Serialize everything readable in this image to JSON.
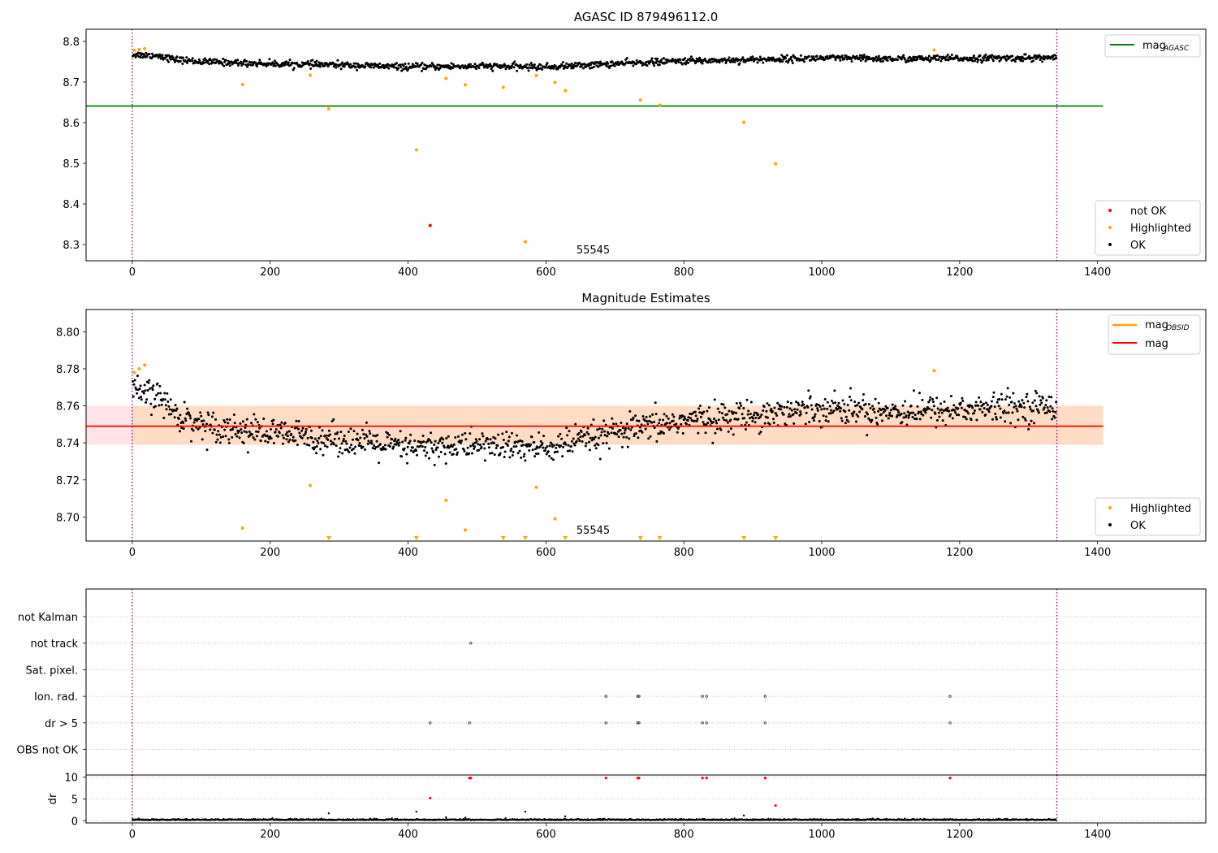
{
  "figure": {
    "panels": [
      {
        "id": "agasc",
        "title": "AGASC ID 879496112.0"
      },
      {
        "id": "estimates",
        "title": "Magnitude Estimates"
      },
      {
        "id": "flags",
        "title": ""
      }
    ]
  },
  "colors": {
    "ok": "#000000",
    "highlighted": "#ffa500",
    "not_ok": "#ff0000",
    "agasc_line": "#008000",
    "mag_line": "#ff0000",
    "mag_obsid": "#ffa500",
    "band_outer": "#ffc0cb",
    "band_inner": "#ffdab9",
    "obs_boundary": "#800080",
    "grid": "#b0b0b0"
  },
  "chart_data": [
    {
      "type": "scatter",
      "title": "AGASC ID 879496112.0",
      "xlim": [
        -67,
        1557
      ],
      "ylim": [
        8.26,
        8.83
      ],
      "x_ticks": [
        0,
        200,
        400,
        600,
        800,
        1000,
        1200,
        1400
      ],
      "y_ticks": [
        8.3,
        8.4,
        8.5,
        8.6,
        8.7,
        8.8
      ],
      "y_tick_labels": [
        "8.3",
        "8.4",
        "8.5",
        "8.6",
        "8.7",
        "8.8"
      ],
      "obs_boundaries": [
        0,
        1341
      ],
      "obsid_label": {
        "text": "55545",
        "x": 670,
        "y": 8.3
      },
      "ok_trend": {
        "x": [
          0,
          20,
          40,
          60,
          100,
          200,
          300,
          400,
          500,
          600,
          700,
          800,
          900,
          1000,
          1100,
          1200,
          1340
        ],
        "y": [
          8.768,
          8.766,
          8.765,
          8.756,
          8.75,
          8.745,
          8.742,
          8.737,
          8.739,
          8.737,
          8.745,
          8.752,
          8.755,
          8.759,
          8.757,
          8.758,
          8.76
        ],
        "scatter": 0.005,
        "n_points": 1340
      },
      "series": [
        {
          "name": "not OK",
          "points": [
            [
              432,
              8.347
            ]
          ]
        },
        {
          "name": "Highlighted",
          "points": [
            [
              3,
              8.778
            ],
            [
              10,
              8.78
            ],
            [
              18,
              8.782
            ],
            [
              160,
              8.694
            ],
            [
              258,
              8.717
            ],
            [
              285,
              8.634
            ],
            [
              412,
              8.533
            ],
            [
              455,
              8.709
            ],
            [
              483,
              8.693
            ],
            [
              538,
              8.687
            ],
            [
              570,
              8.307
            ],
            [
              586,
              8.716
            ],
            [
              613,
              8.699
            ],
            [
              628,
              8.679
            ],
            [
              737,
              8.656
            ],
            [
              765,
              8.643
            ],
            [
              887,
              8.601
            ],
            [
              933,
              8.499
            ],
            [
              1163,
              8.779
            ]
          ]
        }
      ],
      "reference_line": {
        "name": "mag_AGASC",
        "label_main": "mag",
        "label_sub": "AGASC",
        "y": 8.641,
        "x_range": [
          -67,
          1408
        ]
      },
      "legend_lines": {
        "position": "upper right",
        "entries": [
          "mag_AGASC"
        ]
      },
      "legend_points": {
        "position": "lower right",
        "entries": [
          "not OK",
          "Highlighted",
          "OK"
        ]
      }
    },
    {
      "type": "scatter",
      "title": "Magnitude Estimates",
      "xlim": [
        -67,
        1557
      ],
      "ylim": [
        8.687,
        8.812
      ],
      "x_ticks": [
        0,
        200,
        400,
        600,
        800,
        1000,
        1200,
        1400
      ],
      "y_ticks": [
        8.7,
        8.72,
        8.74,
        8.76,
        8.78,
        8.8
      ],
      "y_tick_labels": [
        "8.70",
        "8.72",
        "8.74",
        "8.76",
        "8.78",
        "8.80"
      ],
      "obs_boundaries": [
        0,
        1341
      ],
      "obsid_label": {
        "text": "55545",
        "x": 670,
        "y": 8.691
      },
      "ok_trend": {
        "x": [
          0,
          20,
          40,
          60,
          100,
          200,
          300,
          400,
          500,
          600,
          700,
          800,
          900,
          1000,
          1100,
          1200,
          1340
        ],
        "y": [
          8.768,
          8.766,
          8.765,
          8.756,
          8.75,
          8.745,
          8.742,
          8.737,
          8.739,
          8.737,
          8.745,
          8.752,
          8.755,
          8.759,
          8.757,
          8.758,
          8.76
        ],
        "scatter": 0.005,
        "n_points": 1340
      },
      "series": [
        {
          "name": "Highlighted",
          "points": [
            [
              3,
              8.778
            ],
            [
              10,
              8.78
            ],
            [
              18,
              8.782
            ],
            [
              160,
              8.694
            ],
            [
              258,
              8.717
            ],
            [
              455,
              8.709
            ],
            [
              483,
              8.693
            ],
            [
              586,
              8.716
            ],
            [
              613,
              8.699
            ],
            [
              1163,
              8.779
            ]
          ]
        }
      ],
      "below_range_markers": [
        285,
        412,
        538,
        570,
        628,
        737,
        765,
        887,
        933
      ],
      "mag_line": {
        "name": "mag",
        "y": 8.749,
        "x_range": [
          -67,
          1408
        ]
      },
      "band_outer": [
        8.739,
        8.76
      ],
      "band_inner": [
        8.739,
        8.76
      ],
      "band_inner_x_start": 0,
      "legend_lines": {
        "position": "upper right",
        "entries": [
          "mag_OBSID",
          "mag"
        ]
      },
      "mag_obsid_label": {
        "main": "mag",
        "sub": "OBSID"
      },
      "legend_points": {
        "position": "lower right",
        "entries": [
          "Highlighted",
          "OK"
        ]
      }
    },
    {
      "type": "scatter",
      "title": "",
      "xlim": [
        -67,
        1557
      ],
      "x_ticks": [
        0,
        200,
        400,
        600,
        800,
        1000,
        1200,
        1400
      ],
      "flag_rows": [
        "not Kalman",
        "not track",
        "Sat. pixel.",
        "Ion. rad.",
        "dr > 5",
        "OBS not OK"
      ],
      "flag_points": {
        "not track": [
          491
        ],
        "Ion. rad.": [
          687,
          733,
          735,
          827,
          833,
          918,
          1186
        ],
        "dr > 5": [
          432,
          489,
          687,
          733,
          735,
          827,
          833,
          918,
          1186
        ]
      },
      "obs_boundaries": [
        0,
        1341
      ],
      "dr": {
        "ylabel": "dr",
        "ylim": [
          -0.5,
          10.5
        ],
        "y_ticks": [
          0,
          5,
          10
        ],
        "y_tick_labels": [
          "0",
          "5",
          "10"
        ],
        "flagged_points": [
          [
            432,
            5.2
          ],
          [
            489,
            9.8
          ],
          [
            491,
            9.8
          ],
          [
            687,
            9.8
          ],
          [
            733,
            9.8
          ],
          [
            735,
            9.8
          ],
          [
            827,
            9.8
          ],
          [
            833,
            9.8
          ],
          [
            918,
            9.8
          ],
          [
            1186,
            9.8
          ],
          [
            933,
            3.5
          ]
        ],
        "other_points": [
          [
            285,
            1.7
          ],
          [
            412,
            2.1
          ],
          [
            570,
            2.1
          ],
          [
            628,
            1.0
          ],
          [
            887,
            1.2
          ],
          [
            455,
            0.8
          ],
          [
            483,
            0.7
          ]
        ],
        "baseline": 0.15
      }
    }
  ]
}
